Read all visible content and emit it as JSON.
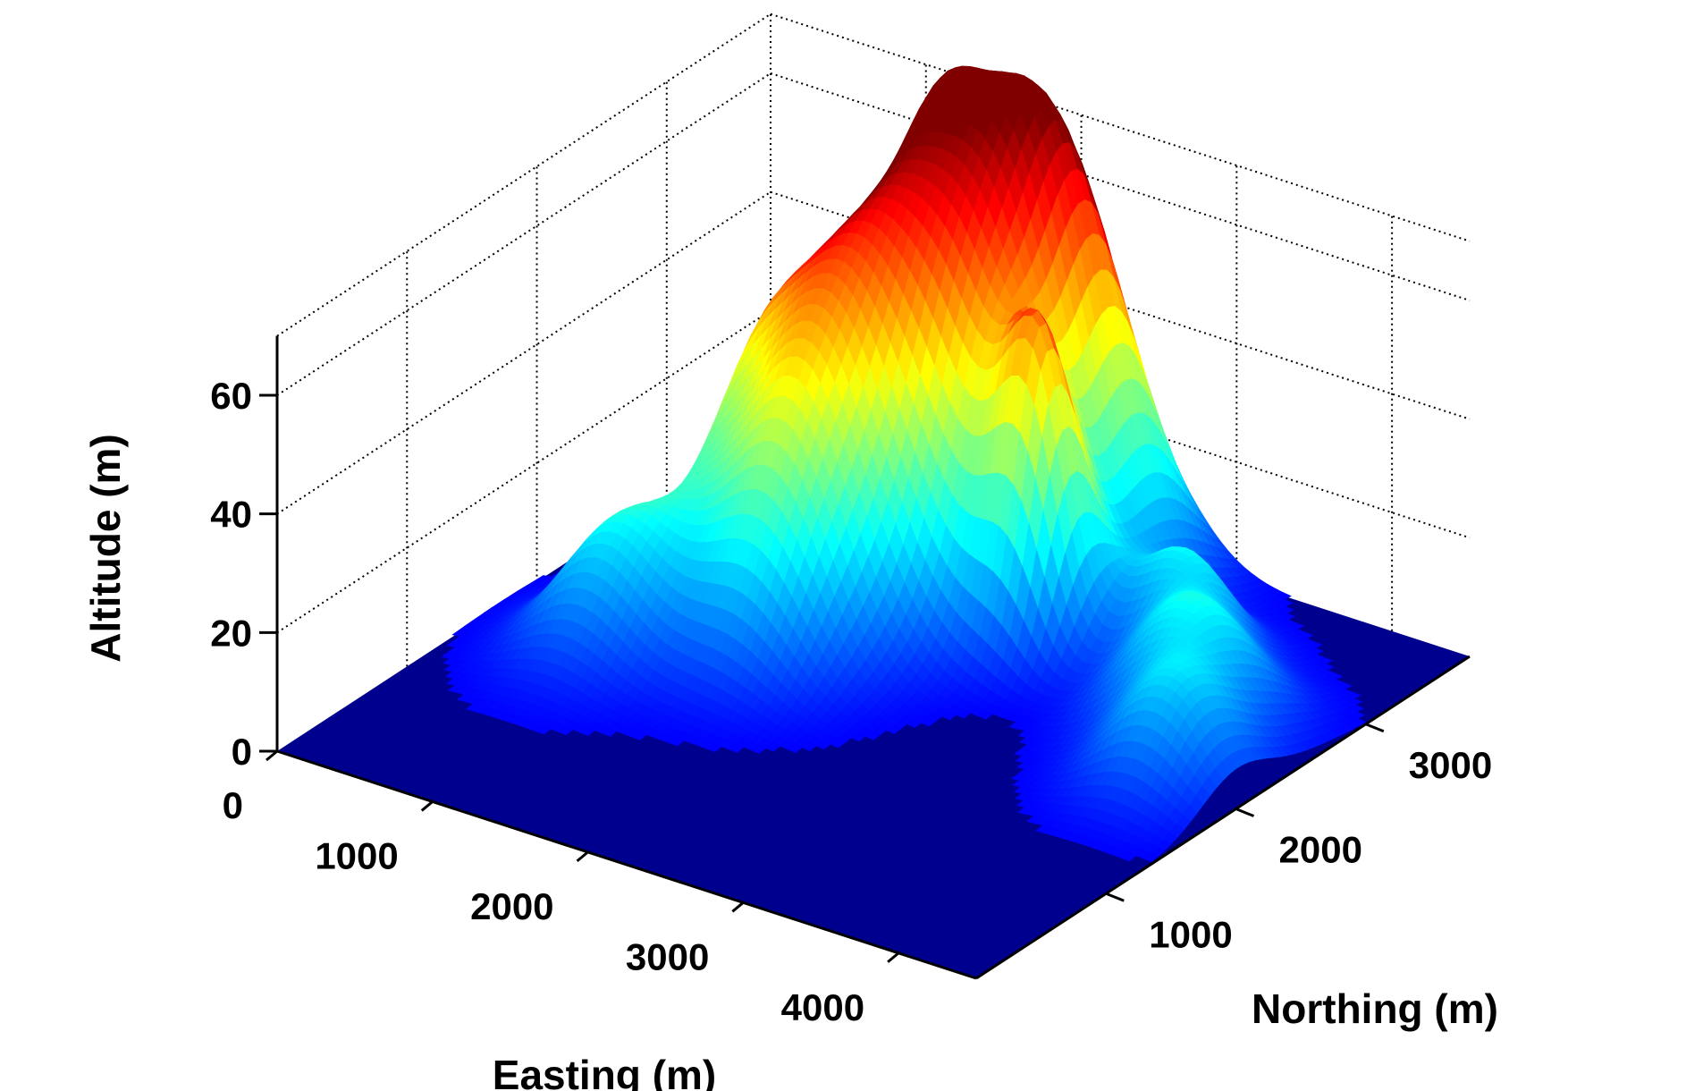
{
  "chart_data": {
    "type": "surface",
    "title": "",
    "xlabel": "Easting (m)",
    "ylabel": "Northing (m)",
    "zlabel": "Altitude (m)",
    "xlim": [
      0,
      4500
    ],
    "ylim": [
      0,
      3800
    ],
    "zlim": [
      0,
      70
    ],
    "x_ticks": [
      0,
      1000,
      2000,
      3000,
      4000
    ],
    "x_tick_labels": [
      "0",
      "1000",
      "2000",
      "3000",
      "4000"
    ],
    "y_ticks": [
      1000,
      2000,
      3000
    ],
    "y_tick_labels": [
      "1000",
      "2000",
      "3000"
    ],
    "z_ticks": [
      0,
      20,
      40,
      60
    ],
    "z_tick_labels": [
      "0",
      "20",
      "40",
      "60"
    ],
    "grid": "on",
    "colormap": "jet",
    "clim": [
      0,
      70
    ],
    "base_color": "#00008f",
    "hills": [
      {
        "easting": 2250,
        "northing": 3400,
        "height": 59,
        "width_e": 380,
        "width_n": 300
      },
      {
        "easting": 1550,
        "northing": 2650,
        "height": 49,
        "width_e": 320,
        "width_n": 450
      },
      {
        "easting": 1480,
        "northing": 3400,
        "height": 52,
        "width_e": 320,
        "width_n": 330
      },
      {
        "easting": 2100,
        "northing": 2850,
        "height": 45,
        "width_e": 300,
        "width_n": 360
      },
      {
        "easting": 1000,
        "northing": 2550,
        "height": 32,
        "width_e": 260,
        "width_n": 300
      },
      {
        "easting": 800,
        "northing": 1700,
        "height": 21,
        "width_e": 300,
        "width_n": 330
      },
      {
        "easting": 1600,
        "northing": 2000,
        "height": 22,
        "width_e": 330,
        "width_n": 320
      },
      {
        "easting": 2650,
        "northing": 2700,
        "height": 45,
        "width_e": 200,
        "width_n": 190
      },
      {
        "easting": 3300,
        "northing": 3000,
        "height": 17,
        "width_e": 260,
        "width_n": 220
      },
      {
        "easting": 3750,
        "northing": 2550,
        "height": 20,
        "width_e": 320,
        "width_n": 280
      },
      {
        "easting": 4100,
        "northing": 2000,
        "height": 17,
        "width_e": 290,
        "width_n": 270
      }
    ]
  }
}
